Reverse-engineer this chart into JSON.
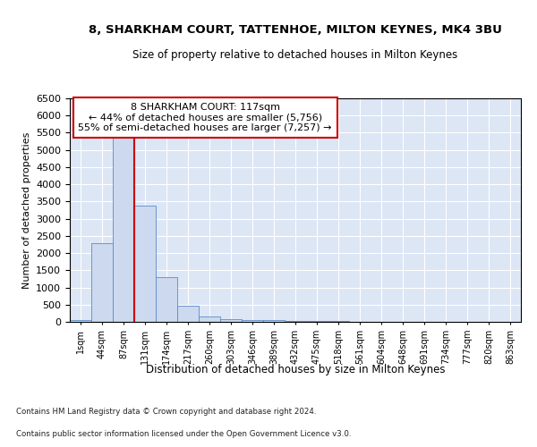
{
  "title": "8, SHARKHAM COURT, TATTENHOE, MILTON KEYNES, MK4 3BU",
  "subtitle": "Size of property relative to detached houses in Milton Keynes",
  "xlabel": "Distribution of detached houses by size in Milton Keynes",
  "ylabel": "Number of detached properties",
  "bin_labels": [
    "1sqm",
    "44sqm",
    "87sqm",
    "131sqm",
    "174sqm",
    "217sqm",
    "260sqm",
    "303sqm",
    "346sqm",
    "389sqm",
    "432sqm",
    "475sqm",
    "518sqm",
    "561sqm",
    "604sqm",
    "648sqm",
    "691sqm",
    "734sqm",
    "777sqm",
    "820sqm",
    "863sqm"
  ],
  "bar_heights": [
    65,
    2280,
    5430,
    3380,
    1310,
    480,
    160,
    80,
    55,
    40,
    30,
    20,
    15,
    10,
    8,
    6,
    5,
    4,
    3,
    2,
    2
  ],
  "bar_color": "#ccd9ee",
  "bar_edge_color": "#5b8cc8",
  "vline_color": "#cc0000",
  "annotation_line1": "8 SHARKHAM COURT: 117sqm",
  "annotation_line2": "← 44% of detached houses are smaller (5,756)",
  "annotation_line3": "55% of semi-detached houses are larger (7,257) →",
  "annotation_box_color": "#ffffff",
  "annotation_box_edge": "#cc0000",
  "ylim": [
    0,
    6500
  ],
  "yticks": [
    0,
    500,
    1000,
    1500,
    2000,
    2500,
    3000,
    3500,
    4000,
    4500,
    5000,
    5500,
    6000,
    6500
  ],
  "background_color": "#dce6f5",
  "footer_line1": "Contains HM Land Registry data © Crown copyright and database right 2024.",
  "footer_line2": "Contains public sector information licensed under the Open Government Licence v3.0."
}
